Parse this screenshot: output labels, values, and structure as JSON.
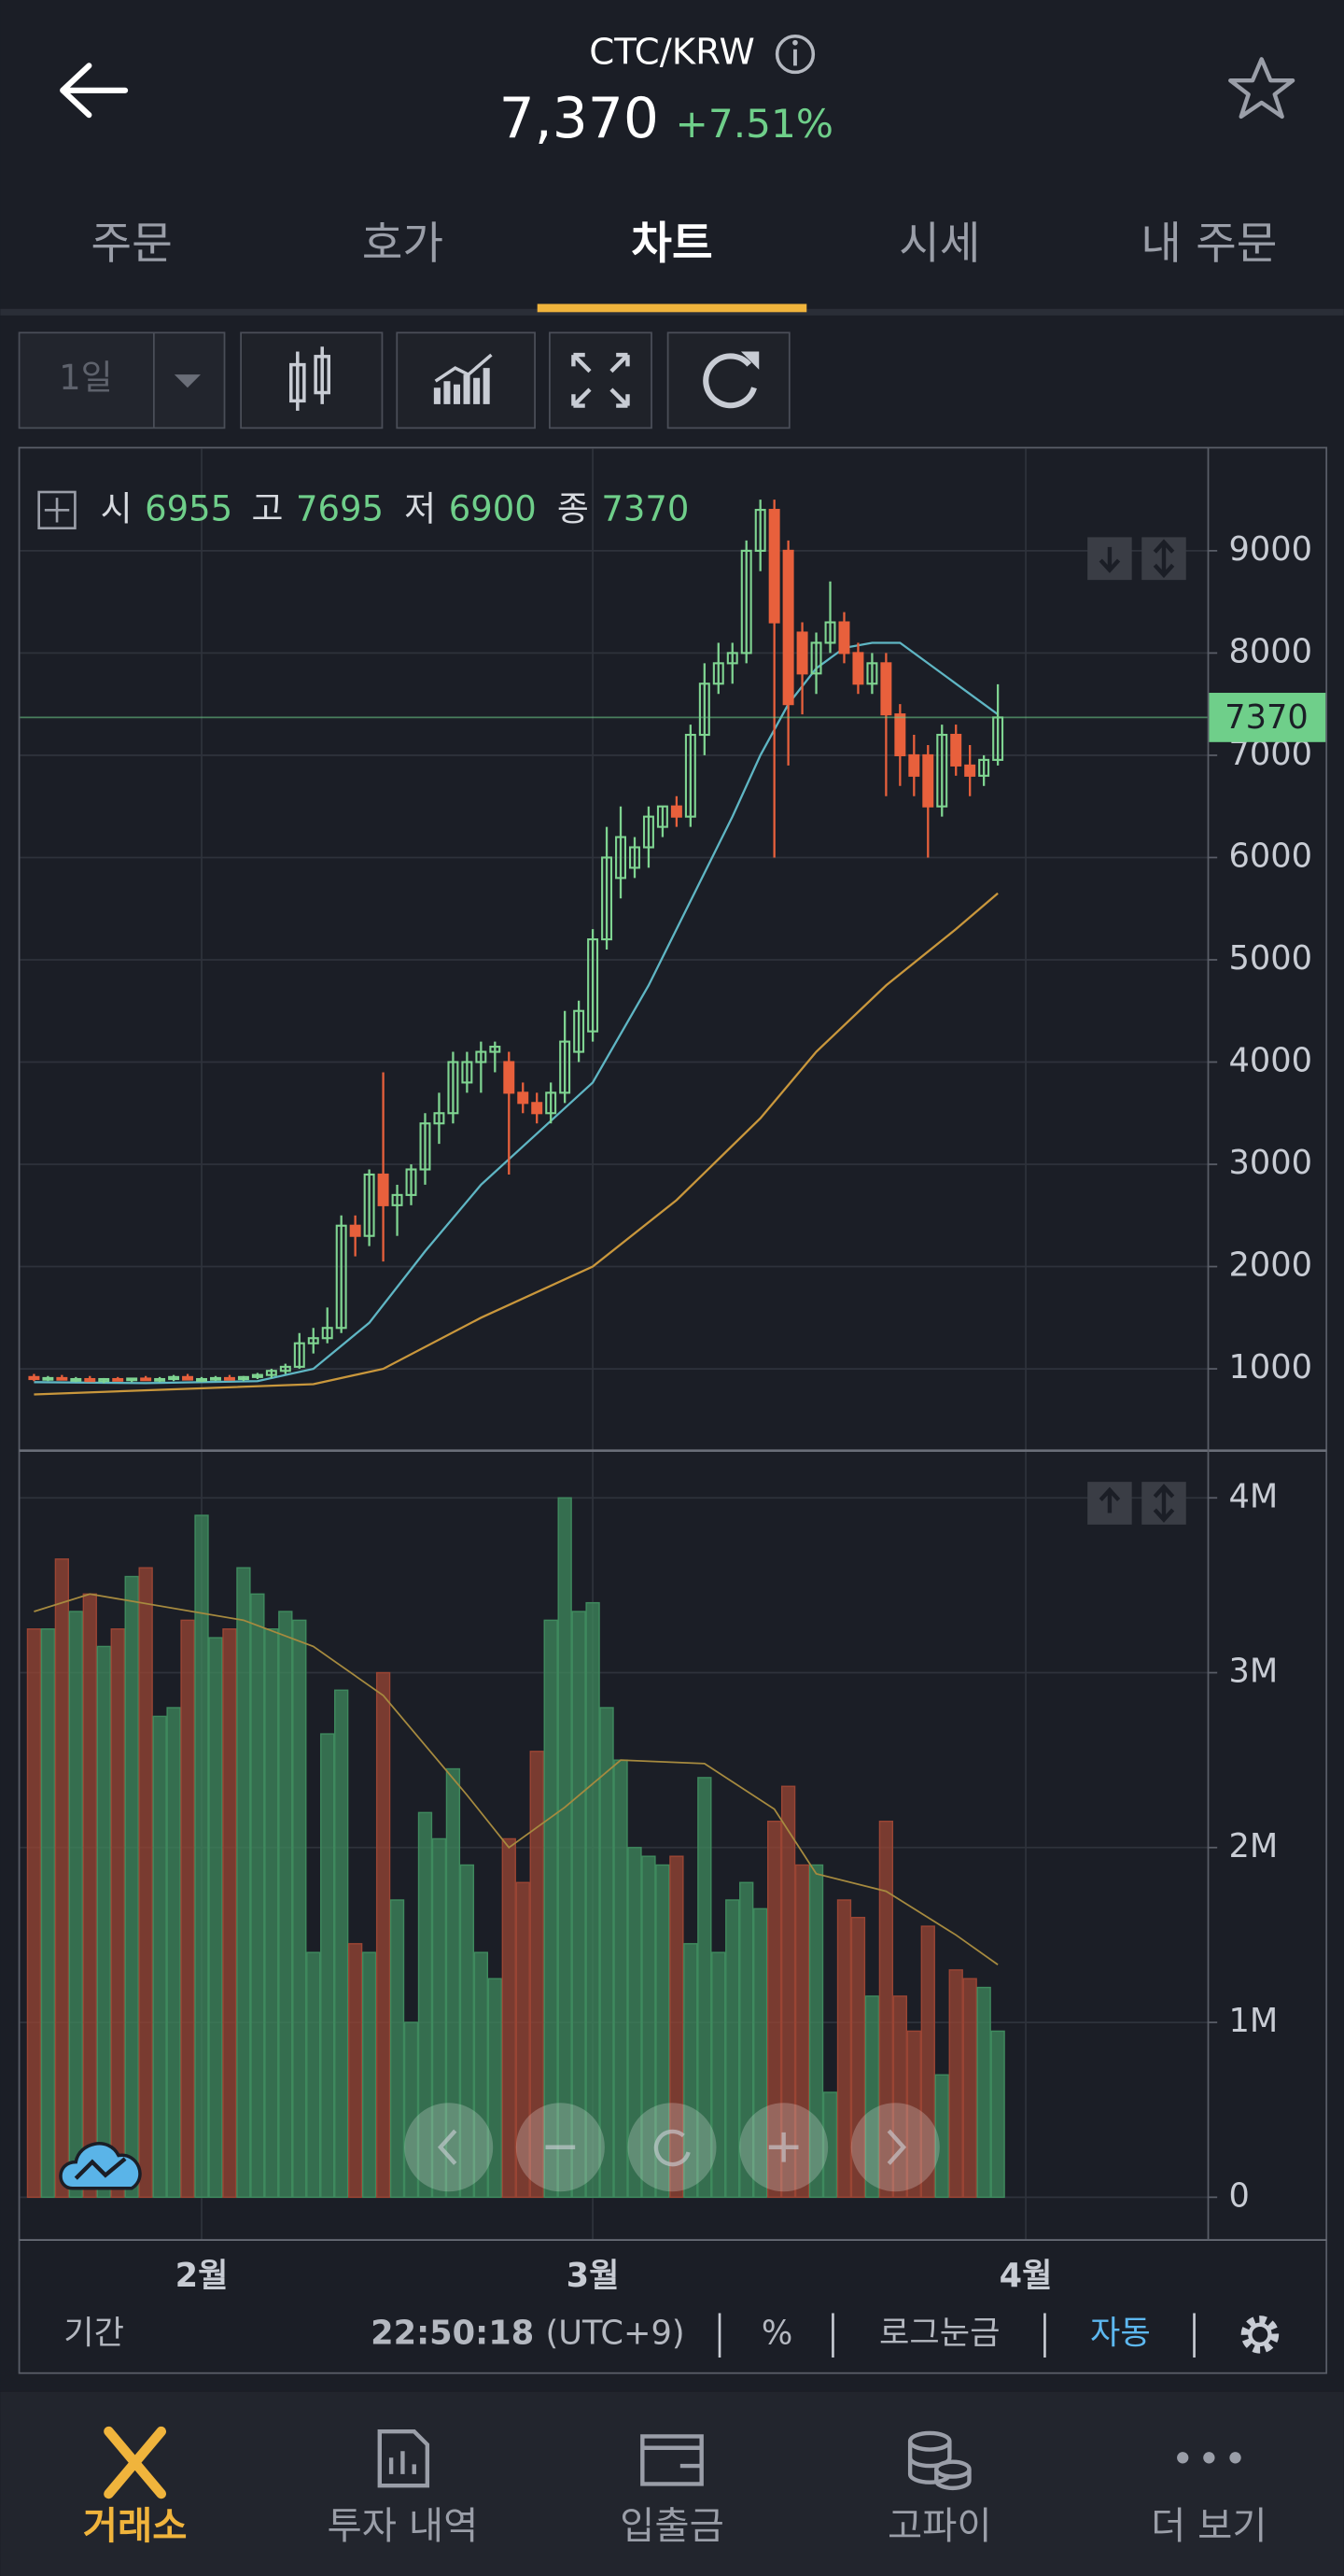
{
  "header": {
    "pair": "CTC/KRW",
    "price": "7,370",
    "change": "+7.51%"
  },
  "tabs": [
    "주문",
    "호가",
    "차트",
    "시세",
    "내 주문"
  ],
  "toolbar": {
    "period": "1일"
  },
  "ohlc_labels": [
    "시",
    "고",
    "저",
    "종"
  ],
  "footer": {
    "period": "기간",
    "time": "22:50:18",
    "zone": "(UTC+9)",
    "percent": "%",
    "log": "로그눈금",
    "auto": "자동"
  },
  "nav": [
    "거래소",
    "투자 내역",
    "입출금",
    "고파이",
    "더 보기"
  ],
  "chart_data": {
    "type": "candlestick",
    "up_color": "#7fd491",
    "down_color": "#e8603c",
    "last_color": "#6fcf8a",
    "grid": true,
    "xlim": [
      -1,
      84
    ],
    "xticks": [
      {
        "value": 12,
        "label": "2월"
      },
      {
        "value": 40,
        "label": "3월"
      },
      {
        "value": 71,
        "label": "4월"
      }
    ],
    "ylim": [
      200,
      10000
    ],
    "yticks": [
      1000,
      2000,
      3000,
      4000,
      5000,
      6000,
      7000,
      8000,
      9000
    ],
    "open": [
      920,
      900,
      910,
      895,
      900,
      880,
      900,
      890,
      905,
      890,
      900,
      920,
      895,
      900,
      910,
      900,
      920,
      940,
      980,
      1020,
      1250,
      1300,
      1400,
      2400,
      2300,
      2900,
      2600,
      2700,
      2950,
      3400,
      3500,
      3800,
      4000,
      4100,
      4000,
      3700,
      3600,
      3500,
      3700,
      4100,
      4300,
      5200,
      5800,
      5900,
      6100,
      6300,
      6500,
      6400,
      7200,
      7700,
      7900,
      8000,
      9000,
      9400,
      9000,
      8200,
      7800,
      8100,
      8300,
      8000,
      7700,
      7900,
      7400,
      7000,
      7000,
      6500,
      7200,
      6900,
      6800,
      6955
    ],
    "high": [
      950,
      930,
      940,
      920,
      930,
      910,
      920,
      910,
      930,
      920,
      940,
      950,
      920,
      930,
      940,
      930,
      960,
      1000,
      1050,
      1350,
      1400,
      1600,
      2500,
      2500,
      2950,
      3900,
      2800,
      3000,
      3500,
      3700,
      4100,
      4100,
      4200,
      4200,
      4100,
      3800,
      3700,
      3800,
      4500,
      4600,
      5300,
      6300,
      6500,
      6200,
      6500,
      6500,
      6600,
      7300,
      7900,
      8100,
      8100,
      9100,
      9500,
      9500,
      9100,
      8300,
      8200,
      8700,
      8400,
      8100,
      8000,
      8000,
      7500,
      7200,
      7100,
      7300,
      7300,
      7100,
      7000,
      7695
    ],
    "low": [
      880,
      880,
      890,
      870,
      880,
      860,
      880,
      870,
      890,
      870,
      880,
      890,
      870,
      880,
      890,
      880,
      900,
      910,
      950,
      1000,
      1150,
      1250,
      1350,
      2100,
      2200,
      2050,
      2300,
      2600,
      2800,
      3200,
      3400,
      3700,
      3700,
      3900,
      2900,
      3500,
      3400,
      3400,
      3600,
      4000,
      4200,
      5100,
      5600,
      5800,
      5900,
      6200,
      6300,
      6300,
      7000,
      7600,
      7700,
      7900,
      8800,
      6000,
      6900,
      7400,
      7600,
      8000,
      7900,
      7600,
      7600,
      6600,
      6700,
      6600,
      6000,
      6400,
      6800,
      6600,
      6700,
      6900
    ],
    "close": [
      900,
      910,
      895,
      900,
      880,
      900,
      890,
      905,
      890,
      900,
      920,
      895,
      900,
      910,
      900,
      920,
      940,
      980,
      1020,
      1250,
      1300,
      1400,
      2400,
      2300,
      2900,
      2600,
      2700,
      2950,
      3400,
      3500,
      4000,
      4000,
      4100,
      4150,
      3700,
      3600,
      3500,
      3700,
      4200,
      4500,
      5200,
      6000,
      6200,
      6100,
      6400,
      6500,
      6400,
      7200,
      7700,
      7900,
      8000,
      9000,
      9400,
      8300,
      7500,
      7800,
      8100,
      8300,
      8000,
      7700,
      7900,
      7400,
      7000,
      6800,
      6500,
      7200,
      6900,
      6800,
      6955,
      7370
    ],
    "ma": [
      {
        "color": "#5fb6c4",
        "x": [
          0,
          8,
          16,
          20,
          24,
          28,
          32,
          36,
          40,
          44,
          48,
          50,
          52,
          54,
          56,
          58,
          60,
          62,
          64,
          66,
          68,
          69
        ],
        "values": [
          870,
          860,
          880,
          1000,
          1450,
          2150,
          2800,
          3300,
          3800,
          4750,
          5850,
          6400,
          7000,
          7500,
          7850,
          8050,
          8100,
          8100,
          7900,
          7700,
          7500,
          7400
        ]
      },
      {
        "color": "#c9973c",
        "x": [
          0,
          10,
          20,
          25,
          32,
          40,
          46,
          52,
          56,
          61,
          66,
          69
        ],
        "values": [
          750,
          800,
          850,
          1000,
          1500,
          2000,
          2650,
          3450,
          4100,
          4750,
          5300,
          5650
        ]
      }
    ],
    "volume": {
      "type": "bar",
      "up_color": "#3f8a5e",
      "down_color": "#9a4534",
      "ylim": [
        -240000,
        4270000
      ],
      "yticks": [
        0,
        {
          "value": 1000000,
          "label": "1M"
        },
        {
          "value": 2000000,
          "label": "2M"
        },
        {
          "value": 3000000,
          "label": "3M"
        },
        {
          "value": 4000000,
          "label": "4M"
        }
      ],
      "values": [
        3250000,
        3250000,
        3650000,
        3350000,
        3450000,
        3150000,
        3250000,
        3550000,
        3600000,
        2750000,
        2800000,
        3300000,
        3900000,
        3200000,
        3250000,
        3600000,
        3450000,
        3250000,
        3350000,
        3300000,
        1400000,
        2650000,
        2900000,
        1450000,
        1400000,
        3000000,
        1700000,
        1000000,
        2200000,
        2050000,
        2450000,
        1900000,
        1400000,
        1250000,
        2050000,
        1800000,
        2550000,
        3300000,
        4000000,
        3350000,
        3400000,
        2800000,
        2500000,
        2000000,
        1950000,
        1900000,
        1950000,
        1450000,
        2400000,
        1400000,
        1700000,
        1800000,
        1650000,
        2150000,
        2350000,
        1900000,
        1900000,
        600000,
        1700000,
        1600000,
        1150000,
        2150000,
        1150000,
        950000,
        1550000,
        700000,
        1300000,
        1250000,
        1200000,
        950000
      ],
      "ma": {
        "color": "#a68a3f",
        "x": [
          0,
          4,
          15,
          20,
          25,
          31,
          34,
          38,
          42,
          48,
          53,
          56,
          61,
          66,
          69
        ],
        "values": [
          3350000,
          3450000,
          3300000,
          3150000,
          2870000,
          2300000,
          2000000,
          2230000,
          2500000,
          2480000,
          2220000,
          1850000,
          1750000,
          1500000,
          1330000
        ]
      }
    }
  }
}
